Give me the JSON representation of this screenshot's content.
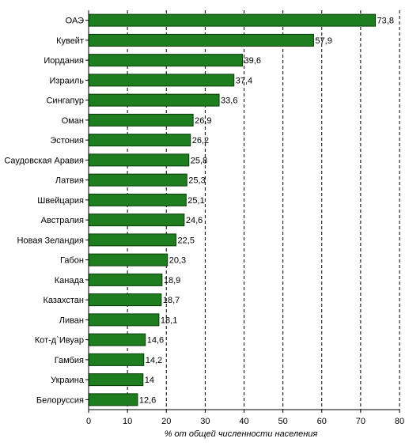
{
  "chart_data": {
    "type": "bar",
    "orientation": "horizontal",
    "categories": [
      "ОАЭ",
      "Кувейт",
      "Иордания",
      "Израиль",
      "Сингапур",
      "Оман",
      "Эстония",
      "Саудовская Аравия",
      "Латвия",
      "Швейцария",
      "Австралия",
      "Новая Зеландия",
      "Габон",
      "Канада",
      "Казахстан",
      "Ливан",
      "Кот-д`Ивуар",
      "Гамбия",
      "Украина",
      "Белоруссия"
    ],
    "values": [
      73.8,
      57.9,
      39.6,
      37.4,
      33.6,
      26.9,
      26.2,
      25.8,
      25.3,
      25.1,
      24.6,
      22.5,
      20.3,
      18.9,
      18.7,
      18.1,
      14.6,
      14.2,
      14,
      12.6
    ],
    "value_labels": [
      "73,8",
      "57,9",
      "39,6",
      "37,4",
      "33,6",
      "26,9",
      "26,2",
      "25,8",
      "25,3",
      "25,1",
      "24,6",
      "22,5",
      "20,3",
      "18,9",
      "18,7",
      "18,1",
      "14,6",
      "14,2",
      "14",
      "12,6"
    ],
    "title": "",
    "xlabel": "% от общей численности населения",
    "ylabel": "",
    "xlim": [
      0,
      80
    ],
    "x_ticks": [
      "0",
      "10",
      "20",
      "30",
      "40",
      "50",
      "60",
      "70",
      "80"
    ],
    "grid": "vertical dashed",
    "legend": "none",
    "colors": {
      "bar": "#1e7d1e",
      "bar_stroke": "#0a3a0a",
      "grid": "#000000",
      "axis": "#000000"
    }
  }
}
